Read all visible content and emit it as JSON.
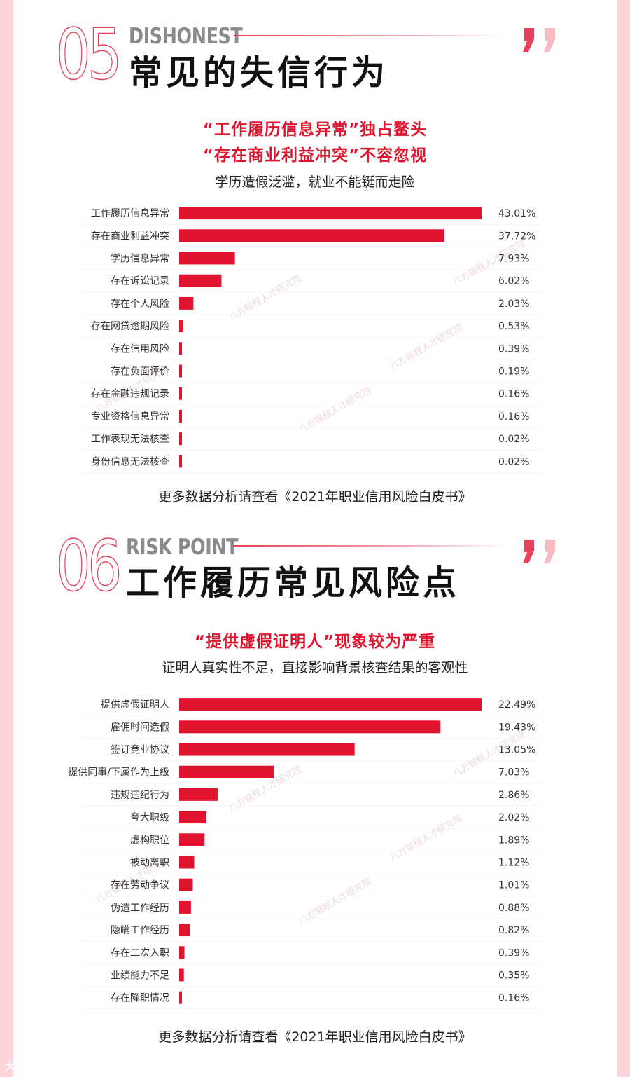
{
  "sections": [
    {
      "number": "05",
      "en_title": "DISHONEST",
      "zh_title": "常见的失信行为",
      "headlines": [
        "“工作履历信息异常”独占鳌头",
        "“存在商业利益冲突”不容忽视"
      ],
      "subtitle": "学历造假泛滥，就业不能铤而走险",
      "footer": "更多数据分析请查看《2021年职业信用风险白皮书》"
    },
    {
      "number": "06",
      "en_title": "RISK POINT",
      "zh_title": "工作履历常见风险点",
      "headlines": [
        "“提供虚假证明人”现象较为严重"
      ],
      "subtitle": "证明人真实性不足，直接影响背景核查结果的客观性",
      "footer": "更多数据分析请查看《2021年职业信用风险白皮书》"
    }
  ],
  "colors": {
    "accent": "#e0142e",
    "bar": "#e0142e",
    "outline": "#e6405a",
    "background": "#fbd3d8"
  },
  "watermark": "八方锦程人才研究院",
  "logo": "大数跨境",
  "chart_data": [
    {
      "type": "bar",
      "orientation": "horizontal",
      "categories": [
        "工作履历信息异常",
        "存在商业利益冲突",
        "学历信息异常",
        "存在诉讼记录",
        "存在个人风险",
        "存在网贷逾期风险",
        "存在信用风险",
        "存在负面评价",
        "存在金融违规记录",
        "专业资格信息异常",
        "工作表现无法核查",
        "身份信息无法核查"
      ],
      "values": [
        43.01,
        37.72,
        7.93,
        6.02,
        2.03,
        0.53,
        0.39,
        0.19,
        0.16,
        0.16,
        0.02,
        0.02
      ],
      "value_labels": [
        "43.01%",
        "37.72%",
        "7.93%",
        "6.02%",
        "2.03%",
        "0.53%",
        "0.39%",
        "0.19%",
        "0.16%",
        "0.16%",
        "0.02%",
        "0.02%"
      ],
      "unit": "%",
      "grid": false
    },
    {
      "type": "bar",
      "orientation": "horizontal",
      "categories": [
        "提供虚假证明人",
        "雇佣时间造假",
        "签订竞业协议",
        "提供同事/下属作为上级",
        "违规违纪行为",
        "夸大职级",
        "虚构职位",
        "被动离职",
        "存在劳动争议",
        "伪造工作经历",
        "隐瞒工作经历",
        "存在二次入职",
        "业绩能力不足",
        "存在降职情况"
      ],
      "values": [
        22.49,
        19.43,
        13.05,
        7.03,
        2.86,
        2.02,
        1.89,
        1.12,
        1.01,
        0.88,
        0.82,
        0.39,
        0.35,
        0.16
      ],
      "value_labels": [
        "22.49%",
        "19.43%",
        "13.05%",
        "7.03%",
        "2.86%",
        "2.02%",
        "1.89%",
        "1.12%",
        "1.01%",
        "0.88%",
        "0.82%",
        "0.39%",
        "0.35%",
        "0.16%"
      ],
      "unit": "%",
      "grid": false
    }
  ]
}
